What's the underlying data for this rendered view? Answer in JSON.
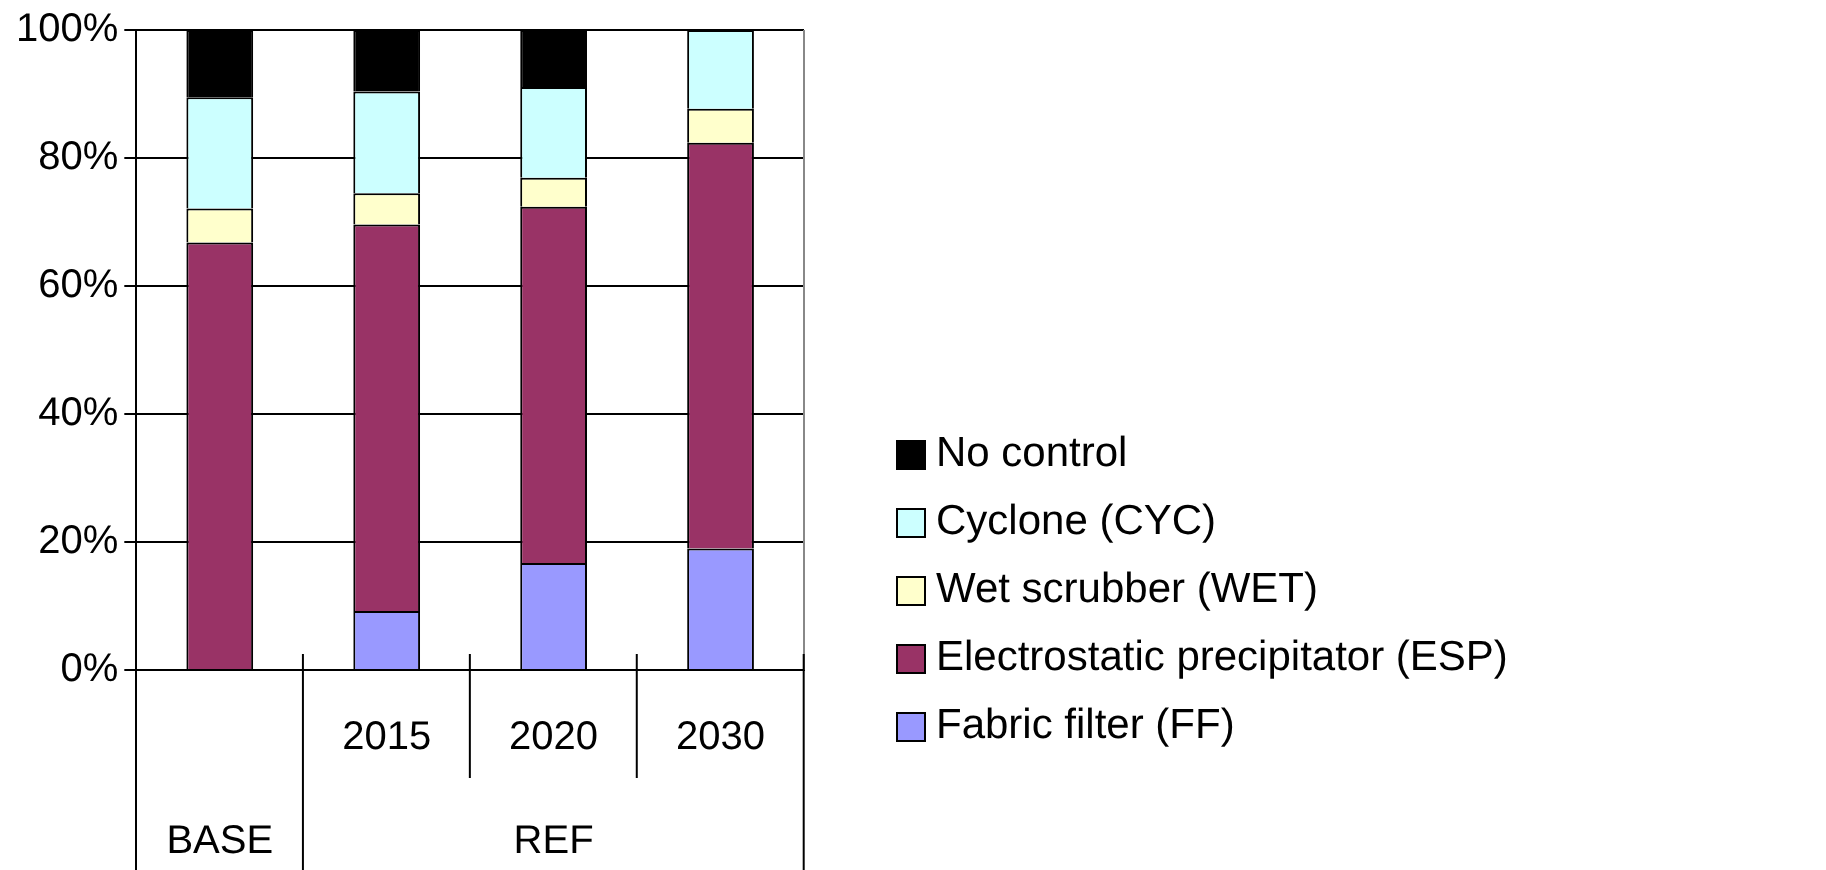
{
  "chart_data": {
    "type": "bar",
    "stacked": true,
    "categories": [
      null,
      "2015",
      "2020",
      "2030"
    ],
    "annotations": [
      "BASE",
      "REF"
    ],
    "ylim": [
      0,
      100
    ],
    "yticks": [
      {
        "value": 0,
        "label": "0%"
      },
      {
        "value": 20,
        "label": "20%"
      },
      {
        "value": 40,
        "label": "40%"
      },
      {
        "value": 60,
        "label": "60%"
      },
      {
        "value": 80,
        "label": "80%"
      },
      {
        "value": 100,
        "label": "100%"
      }
    ],
    "grid": "y",
    "legend": "right",
    "series": [
      {
        "name": "Fabric filter (FF)",
        "color": "#9999ff",
        "values": [
          0,
          9.2,
          16.7,
          19.0
        ]
      },
      {
        "name": "Electrostatic precipitator (ESP)",
        "color": "#993366",
        "values": [
          66.8,
          60.4,
          55.7,
          63.4
        ]
      },
      {
        "name": "Wet scrubber (WET)",
        "color": "#ffffcc",
        "values": [
          5.3,
          4.9,
          4.5,
          5.3
        ]
      },
      {
        "name": "Cyclone (CYC)",
        "color": "#ccffff",
        "values": [
          17.4,
          15.9,
          14.2,
          12.3
        ]
      },
      {
        "name": "No control",
        "color": "#000000",
        "values": [
          10.5,
          9.6,
          8.9,
          0
        ]
      }
    ]
  }
}
